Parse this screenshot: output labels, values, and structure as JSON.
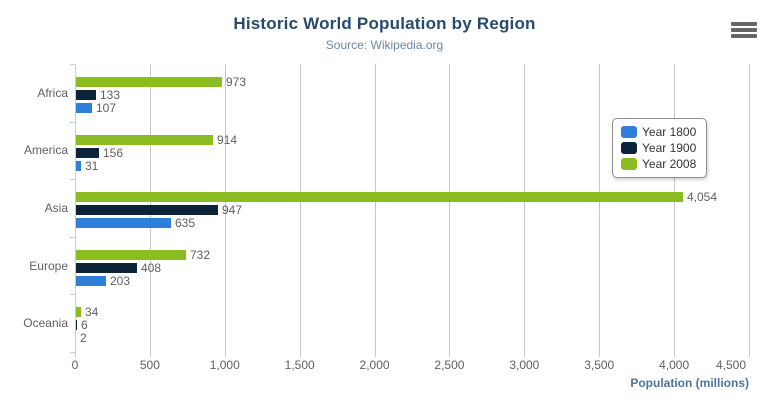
{
  "chart_data": {
    "type": "bar",
    "orientation": "horizontal",
    "title": "Historic World Population by Region",
    "subtitle": "Source: Wikipedia.org",
    "categories": [
      "Africa",
      "America",
      "Asia",
      "Europe",
      "Oceania"
    ],
    "series": [
      {
        "name": "Year 1800",
        "color": "#2f7ed8",
        "values": [
          107,
          31,
          635,
          203,
          2
        ]
      },
      {
        "name": "Year 1900",
        "color": "#0d233a",
        "values": [
          133,
          156,
          947,
          408,
          6
        ]
      },
      {
        "name": "Year 2008",
        "color": "#8bbc21",
        "values": [
          973,
          914,
          4054,
          732,
          34
        ]
      }
    ],
    "xlabel": "Population (millions)",
    "ylabel": "",
    "xlim": [
      0,
      4500
    ],
    "xtick_labels": [
      "0",
      "500",
      "1,000",
      "1,500",
      "2,000",
      "2,500",
      "3,000",
      "3,500",
      "4,000",
      "4,500"
    ],
    "grid": true,
    "legend_position": "right",
    "bar_label_note": "data labels show formatted values, e.g. 4,054"
  },
  "toolbar": {
    "menu_icon": "hamburger-menu"
  },
  "colors": {
    "title": "#274b6d",
    "subtitle": "#6d869f",
    "axis_title": "#4d759e",
    "axis_line": "#c0d0e0",
    "gridline": "#c7c7c7",
    "labels": "#606060",
    "legend_text": "#333333",
    "menu_icon": "#666666"
  }
}
